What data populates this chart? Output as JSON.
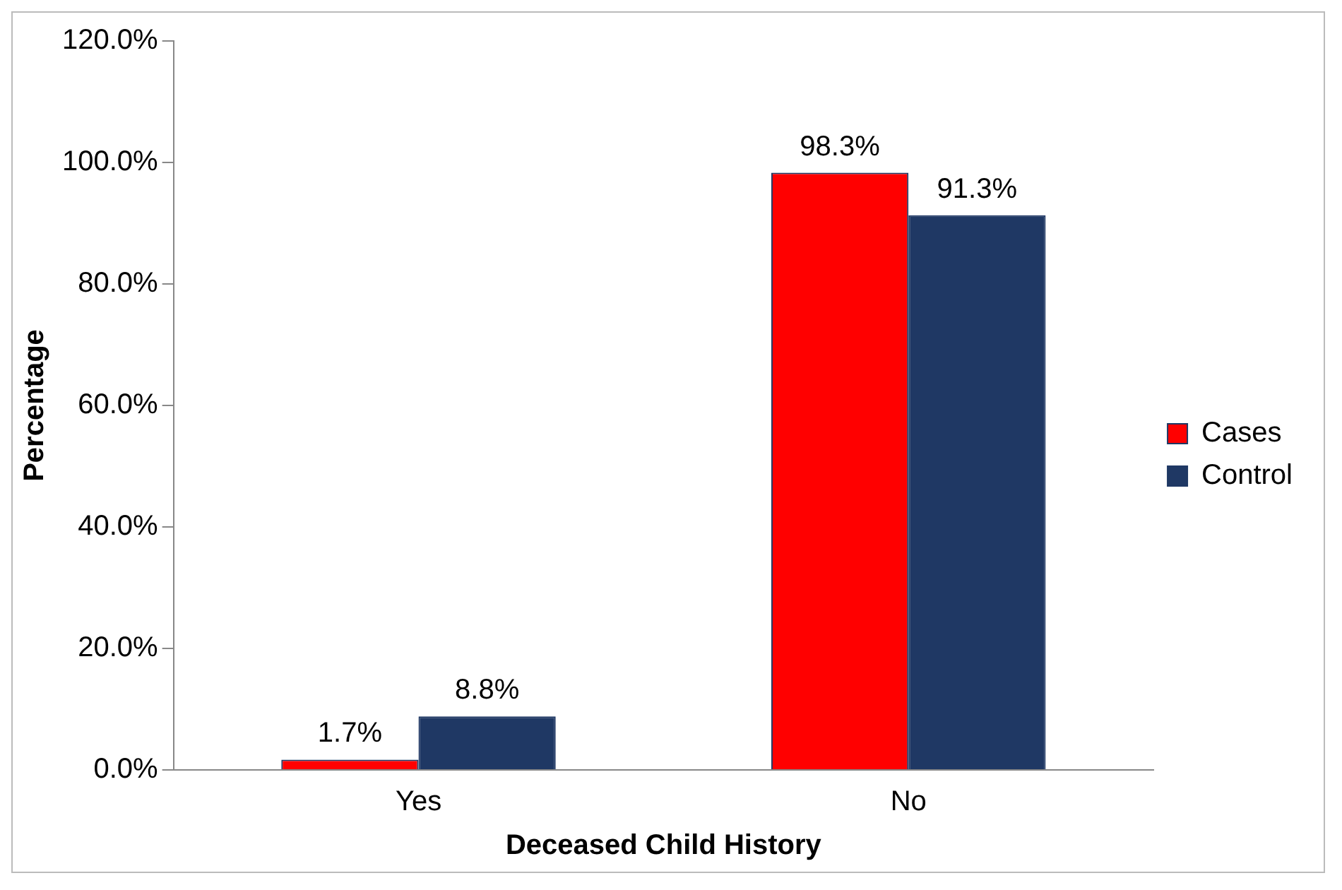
{
  "chart_data": {
    "type": "bar",
    "xlabel": "Deceased Child History",
    "ylabel": "Percentage",
    "categories": [
      "Yes",
      "No"
    ],
    "series": [
      {
        "name": "Cases",
        "color": "#ff0000",
        "values": [
          1.7,
          98.3
        ],
        "value_labels": [
          "1.7%",
          "98.3%"
        ]
      },
      {
        "name": "Control",
        "color": "#1f3864",
        "values": [
          8.8,
          91.3
        ],
        "value_labels": [
          "8.8%",
          "91.3%"
        ]
      }
    ],
    "ylim": [
      0,
      120
    ],
    "yticks": [
      {
        "value": 0,
        "label": "0.0%"
      },
      {
        "value": 20,
        "label": "20.0%"
      },
      {
        "value": 40,
        "label": "40.0%"
      },
      {
        "value": 60,
        "label": "60.0%"
      },
      {
        "value": 80,
        "label": "80.0%"
      },
      {
        "value": 100,
        "label": "100.0%"
      },
      {
        "value": 120,
        "label": "120.0%"
      }
    ],
    "grid": false,
    "legend": "right"
  }
}
